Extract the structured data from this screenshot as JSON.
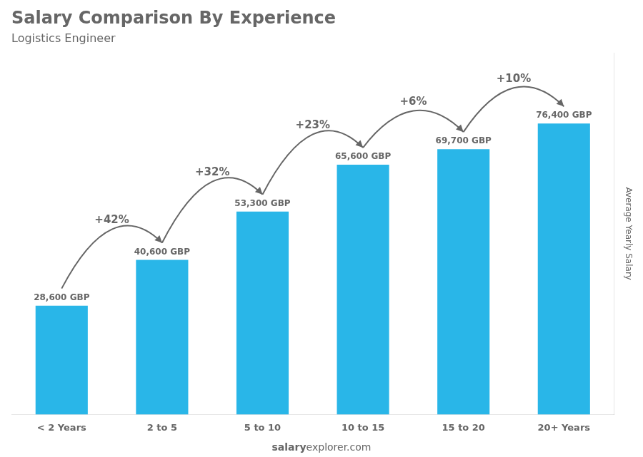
{
  "chart_data": {
    "type": "bar",
    "title": "Salary Comparison By Experience",
    "subtitle": "Logistics Engineer",
    "categories": [
      "< 2 Years",
      "2 to 5",
      "5 to 10",
      "10 to 15",
      "15 to 20",
      "20+ Years"
    ],
    "values": [
      28600,
      40600,
      53300,
      65600,
      69700,
      76400
    ],
    "value_labels": [
      "28,600 GBP",
      "40,600 GBP",
      "53,300 GBP",
      "65,600 GBP",
      "69,700 GBP",
      "76,400 GBP"
    ],
    "data_labels": true,
    "color": "#29B6E8",
    "ylabel": "Average Yearly Salary",
    "ylim": [
      0,
      95000
    ],
    "tick_labels": "x",
    "grid": false,
    "annotations": [
      {
        "text": "+42%",
        "from": "< 2 Years",
        "to": "2 to 5"
      },
      {
        "text": "+32%",
        "from": "2 to 5",
        "to": "5 to 10"
      },
      {
        "text": "+23%",
        "from": "5 to 10",
        "to": "10 to 15"
      },
      {
        "text": "+6%",
        "from": "10 to 15",
        "to": "15 to 20"
      },
      {
        "text": "+10%",
        "from": "15 to 20",
        "to": "20+ Years"
      }
    ],
    "watermark": [
      "salary",
      "explorer.com"
    ]
  }
}
